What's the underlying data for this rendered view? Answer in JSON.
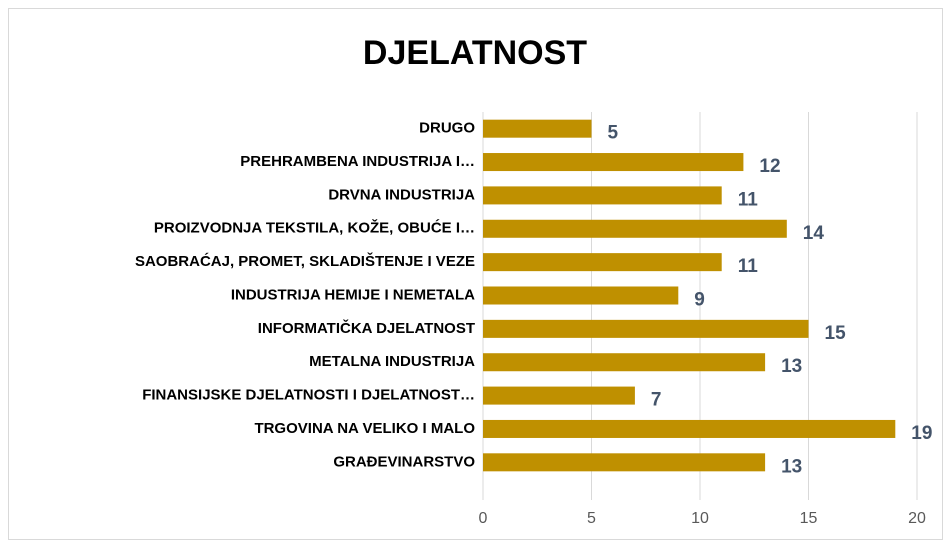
{
  "chart_data": {
    "type": "bar",
    "orientation": "horizontal",
    "title": "DJELATNOST",
    "categories": [
      "DRUGO",
      "PREHRAMBENA INDUSTRIJA I…",
      "DRVNA INDUSTRIJA",
      "PROIZVODNJA TEKSTILA, KOŽE, OBUĆE I…",
      "SAOBRAĆAJ, PROMET, SKLADIŠTENJE I VEZE",
      "INDUSTRIJA HEMIJE I NEMETALA",
      "INFORMATIČKA DJELATNOST",
      "METALNA INDUSTRIJA",
      "FINANSIJSKE DJELATNOSTI I DJELATNOST…",
      "TRGOVINA NA VELIKO I MALO",
      "GRAĐEVINARSTVO"
    ],
    "values": [
      5,
      12,
      11,
      14,
      11,
      9,
      15,
      13,
      7,
      19,
      13
    ],
    "color": "#bf9000",
    "xlim": [
      0,
      20
    ],
    "xticks": [
      0,
      5,
      10,
      15,
      20
    ],
    "grid": true
  }
}
